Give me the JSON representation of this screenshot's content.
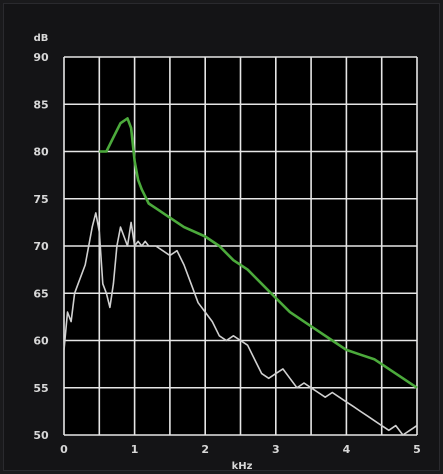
{
  "chart_data": {
    "type": "line",
    "title": "",
    "ylabel": "dB",
    "xlabel": "kHz",
    "xlim": [
      0,
      5
    ],
    "ylim": [
      50,
      90
    ],
    "x_ticks": [
      0,
      1,
      2,
      3,
      4,
      5
    ],
    "x_tick_labels": [
      "0",
      "1",
      "2",
      "3",
      "4",
      "5"
    ],
    "y_ticks": [
      50,
      55,
      60,
      65,
      70,
      75,
      80,
      85,
      90
    ],
    "y_tick_labels": [
      "50",
      "55",
      "60",
      "65",
      "70",
      "75",
      "80",
      "85",
      "90"
    ],
    "grid": true,
    "series": [
      {
        "color": "#4caa3c",
        "x": [
          0.5,
          0.6,
          0.7,
          0.8,
          0.9,
          0.95,
          1.0,
          1.05,
          1.1,
          1.2,
          1.3,
          1.5,
          1.7,
          2.0,
          2.2,
          2.4,
          2.6,
          2.8,
          3.0,
          3.2,
          3.4,
          3.6,
          3.8,
          4.0,
          4.2,
          4.4,
          4.6,
          4.8,
          5.0
        ],
        "y": [
          80.0,
          80.0,
          81.5,
          83.0,
          83.5,
          82.5,
          79.0,
          77.0,
          76.0,
          74.5,
          74.0,
          73.0,
          72.0,
          71.0,
          70.0,
          68.5,
          67.5,
          66.0,
          64.5,
          63.0,
          62.0,
          61.0,
          60.0,
          59.0,
          58.5,
          58.0,
          57.0,
          56.0,
          55.0
        ]
      },
      {
        "color": "#d0d0d0",
        "x": [
          0.0,
          0.05,
          0.1,
          0.15,
          0.2,
          0.3,
          0.35,
          0.4,
          0.45,
          0.5,
          0.55,
          0.6,
          0.65,
          0.7,
          0.75,
          0.8,
          0.85,
          0.9,
          0.95,
          1.0,
          1.05,
          1.1,
          1.15,
          1.2,
          1.3,
          1.4,
          1.5,
          1.6,
          1.7,
          1.8,
          1.9,
          2.0,
          2.1,
          2.2,
          2.3,
          2.4,
          2.5,
          2.6,
          2.7,
          2.8,
          2.9,
          3.0,
          3.1,
          3.2,
          3.3,
          3.4,
          3.5,
          3.6,
          3.7,
          3.8,
          3.9,
          4.0,
          4.1,
          4.2,
          4.3,
          4.4,
          4.5,
          4.6,
          4.7,
          4.8,
          4.9,
          5.0
        ],
        "y": [
          59.0,
          63.0,
          62.0,
          65.0,
          66.0,
          68.0,
          70.0,
          72.0,
          73.5,
          71.5,
          66.0,
          65.0,
          63.5,
          66.0,
          70.0,
          72.0,
          71.0,
          70.0,
          72.5,
          70.0,
          70.5,
          70.0,
          70.5,
          70.0,
          70.0,
          69.5,
          69.0,
          69.5,
          68.0,
          66.0,
          64.0,
          63.0,
          62.0,
          60.5,
          60.0,
          60.5,
          60.0,
          59.5,
          58.0,
          56.5,
          56.0,
          56.5,
          57.0,
          56.0,
          55.0,
          55.5,
          55.0,
          54.5,
          54.0,
          54.5,
          54.0,
          53.5,
          53.0,
          52.5,
          52.0,
          51.5,
          51.0,
          50.5,
          51.0,
          50.0,
          50.5,
          51.0
        ]
      }
    ]
  }
}
